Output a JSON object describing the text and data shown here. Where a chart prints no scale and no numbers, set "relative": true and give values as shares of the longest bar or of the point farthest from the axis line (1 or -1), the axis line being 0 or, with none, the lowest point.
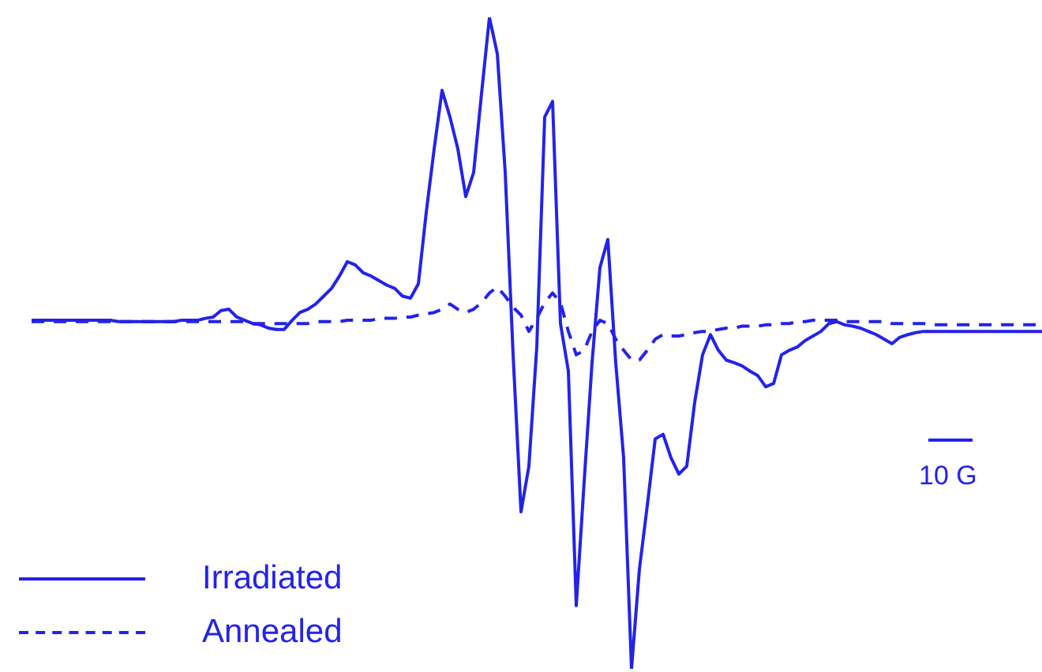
{
  "chart_data": {
    "type": "line",
    "relative": true,
    "legend": "bottom left",
    "marker": "none",
    "annotations": [
      "10 G"
    ],
    "categories": [
      null,
      null,
      null,
      null,
      null,
      null,
      null,
      null,
      null,
      null,
      null,
      null,
      null,
      null,
      null,
      null,
      null,
      null,
      null,
      null,
      null,
      null,
      null,
      null,
      null,
      null,
      null,
      null,
      null,
      null,
      null,
      null,
      null,
      null,
      null,
      null,
      null,
      null,
      null,
      null,
      null,
      null,
      null,
      null,
      null,
      null,
      null,
      null,
      null,
      null,
      null,
      null,
      null,
      null,
      null,
      null,
      null,
      null,
      null,
      null,
      null,
      null,
      null,
      null,
      null,
      null,
      null,
      null,
      null,
      null,
      null,
      null,
      null,
      null,
      null,
      null,
      null,
      null,
      null,
      null,
      null,
      null,
      null,
      null,
      null,
      null,
      null,
      null,
      null,
      null,
      null,
      null,
      null,
      null,
      null,
      null,
      null,
      null,
      null,
      null,
      null,
      null,
      null,
      null,
      null,
      null,
      null,
      null,
      null,
      null,
      null,
      null,
      null,
      null,
      null,
      null,
      null,
      null,
      null,
      null,
      null,
      null,
      null,
      null,
      null,
      null,
      null,
      null,
      null
    ],
    "series": [
      {
        "name": "Irradiated",
        "color": "#2323e8",
        "line_style": "solid",
        "values": [
          0.535,
          0.535,
          0.535,
          0.535,
          0.535,
          0.535,
          0.535,
          0.535,
          0.535,
          0.535,
          0.535,
          0.533,
          0.533,
          0.533,
          0.533,
          0.533,
          0.533,
          0.533,
          0.533,
          0.535,
          0.535,
          0.535,
          0.538,
          0.54,
          0.55,
          0.552,
          0.54,
          0.535,
          0.53,
          0.528,
          0.523,
          0.521,
          0.521,
          0.535,
          0.547,
          0.552,
          0.56,
          0.572,
          0.584,
          0.603,
          0.625,
          0.62,
          0.608,
          0.603,
          0.596,
          0.589,
          0.584,
          0.572,
          0.569,
          0.591,
          0.701,
          0.798,
          0.888,
          0.847,
          0.798,
          0.725,
          0.762,
          0.883,
          1,
          0.944,
          0.762,
          0.482,
          0.241,
          0.311,
          0.494,
          0.847,
          0.871,
          0.53,
          0.457,
          0.097,
          0.287,
          0.47,
          0.616,
          0.659,
          0.47,
          0.324,
          0,
          0.153,
          0.251,
          0.353,
          0.36,
          0.324,
          0.299,
          0.311,
          0.409,
          0.482,
          0.513,
          0.489,
          0.474,
          0.47,
          0.465,
          0.457,
          0.45,
          0.433,
          0.438,
          0.482,
          0.489,
          0.494,
          0.504,
          0.511,
          0.518,
          0.53,
          0.533,
          0.528,
          0.526,
          0.523,
          0.518,
          0.513,
          0.506,
          0.499,
          0.509,
          0.513,
          0.516,
          0.518,
          0.518,
          0.518,
          0.518,
          0.518,
          0.518,
          0.518,
          0.518,
          0.518,
          0.518,
          0.518,
          0.518,
          0.518,
          0.518,
          0.518,
          0.518
        ]
      },
      {
        "name": "Annealed",
        "color": "#2323e8",
        "line_style": "dashed",
        "values": [
          0.533,
          0.533,
          0.533,
          0.533,
          0.533,
          0.533,
          0.533,
          0.533,
          0.533,
          0.533,
          0.533,
          0.533,
          0.533,
          0.533,
          0.533,
          0.533,
          0.533,
          0.533,
          0.533,
          0.533,
          0.533,
          0.533,
          0.533,
          0.533,
          0.533,
          0.533,
          0.533,
          0.533,
          0.53,
          0.53,
          0.53,
          0.53,
          0.53,
          0.53,
          0.53,
          0.53,
          0.533,
          0.533,
          0.533,
          0.533,
          0.535,
          0.535,
          0.535,
          0.535,
          0.538,
          0.538,
          0.538,
          0.54,
          0.54,
          0.543,
          0.545,
          0.547,
          0.552,
          0.56,
          0.552,
          0.547,
          0.552,
          0.562,
          0.577,
          0.586,
          0.572,
          0.555,
          0.543,
          0.518,
          0.538,
          0.562,
          0.577,
          0.562,
          0.518,
          0.482,
          0.489,
          0.518,
          0.535,
          0.53,
          0.506,
          0.489,
          0.474,
          0.474,
          0.489,
          0.506,
          0.513,
          0.511,
          0.511,
          0.513,
          0.516,
          0.518,
          0.518,
          0.521,
          0.523,
          0.523,
          0.526,
          0.526,
          0.526,
          0.528,
          0.528,
          0.53,
          0.53,
          0.533,
          0.533,
          0.535,
          0.535,
          0.535,
          0.535,
          0.533,
          0.533,
          0.533,
          0.533,
          0.533,
          0.533,
          0.53,
          0.53,
          0.53,
          0.53,
          0.53,
          0.528,
          0.528,
          0.528,
          0.528,
          0.528,
          0.528,
          0.528,
          0.528,
          0.528,
          0.528,
          0.528,
          0.528,
          0.528,
          0.528,
          0.528
        ]
      }
    ]
  }
}
